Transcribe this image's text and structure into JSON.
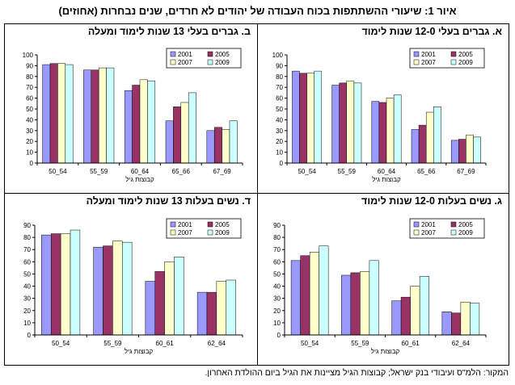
{
  "title": "איור 1: שיעורי ההשתתפות בכוח העבודה של יהודים לא חרדים, שנים נבחרות (אחוזים)",
  "source": "המקור: הלמ\"ס ועיבודי בנק ישראל; קבוצות הגיל מציינות את הגיל ביום ההולדת האחרון.",
  "colors": {
    "2001": "#9999FF",
    "2005": "#993366",
    "2007": "#FFFFCC",
    "2009": "#CCFFFF"
  },
  "chart_data": [
    {
      "type": "bar",
      "title": "א. גברים בעלי 12-0 שנות לימוד",
      "xlabel": "קבוצות גיל",
      "ylabel": "",
      "ylim": [
        0,
        100
      ],
      "yticks": [
        0,
        10,
        20,
        30,
        40,
        50,
        60,
        70,
        80,
        90,
        100
      ],
      "categories": [
        "50_54",
        "55_59",
        "60_64",
        "65_66",
        "67_69"
      ],
      "legend_position": "top-right",
      "series": [
        {
          "name": "2001",
          "values": [
            85,
            72,
            57,
            31,
            21
          ]
        },
        {
          "name": "2005",
          "values": [
            83,
            74,
            56,
            35,
            22
          ]
        },
        {
          "name": "2007",
          "values": [
            83,
            76,
            60,
            47,
            26
          ]
        },
        {
          "name": "2009",
          "values": [
            85,
            74,
            63,
            52,
            24
          ]
        }
      ]
    },
    {
      "type": "bar",
      "title": "ב. גברים בעלי 13 שנות לימוד ומעלה",
      "xlabel": "קבוצות גיל",
      "ylabel": "",
      "ylim": [
        0,
        100
      ],
      "yticks": [
        0,
        10,
        20,
        30,
        40,
        50,
        60,
        70,
        80,
        90,
        100
      ],
      "categories": [
        "50_54",
        "55_59",
        "60_64",
        "65_66",
        "67_69"
      ],
      "legend_position": "top-right",
      "series": [
        {
          "name": "2001",
          "values": [
            91,
            86,
            67,
            39,
            30
          ]
        },
        {
          "name": "2005",
          "values": [
            92,
            86,
            72,
            52,
            33
          ]
        },
        {
          "name": "2007",
          "values": [
            92,
            88,
            77,
            56,
            31
          ]
        },
        {
          "name": "2009",
          "values": [
            91,
            88,
            76,
            65,
            39
          ]
        }
      ]
    },
    {
      "type": "bar",
      "title": "ג. נשים בעלות 12-0 שנות לימוד",
      "xlabel": "קבוצות גיל",
      "ylabel": "",
      "ylim": [
        0,
        90
      ],
      "yticks": [
        0,
        10,
        20,
        30,
        40,
        50,
        60,
        70,
        80,
        90
      ],
      "categories": [
        "50_54",
        "55_59",
        "60_61",
        "62_64"
      ],
      "legend_position": "top-right",
      "series": [
        {
          "name": "2001",
          "values": [
            61,
            49,
            28,
            19
          ]
        },
        {
          "name": "2005",
          "values": [
            65,
            51,
            31,
            18
          ]
        },
        {
          "name": "2007",
          "values": [
            68,
            52,
            40,
            27
          ]
        },
        {
          "name": "2009",
          "values": [
            73,
            61,
            48,
            26
          ]
        }
      ]
    },
    {
      "type": "bar",
      "title": "ד. נשים בעלות 13 שנות לימוד ומעלה",
      "xlabel": "קבוצות גיל",
      "ylabel": "",
      "ylim": [
        0,
        90
      ],
      "yticks": [
        0,
        10,
        20,
        30,
        40,
        50,
        60,
        70,
        80,
        90
      ],
      "categories": [
        "50_54",
        "55_59",
        "60_61",
        "62_64"
      ],
      "legend_position": "top-right",
      "series": [
        {
          "name": "2001",
          "values": [
            82,
            72,
            44,
            35
          ]
        },
        {
          "name": "2005",
          "values": [
            83,
            73,
            52,
            35
          ]
        },
        {
          "name": "2007",
          "values": [
            83,
            77,
            60,
            44
          ]
        },
        {
          "name": "2009",
          "values": [
            86,
            76,
            64,
            45
          ]
        }
      ]
    }
  ]
}
